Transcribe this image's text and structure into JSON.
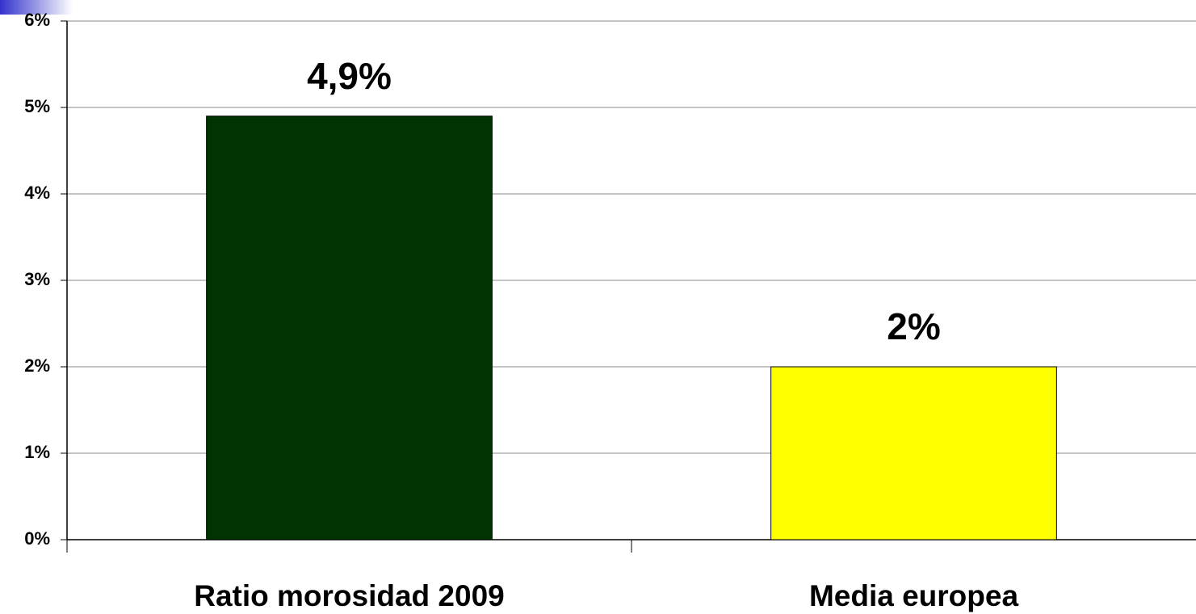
{
  "chart_data": {
    "type": "bar",
    "categories": [
      "Ratio morosidad 2009",
      "Media europea"
    ],
    "values": [
      4.9,
      2
    ],
    "value_labels": [
      "4,9%",
      "2%"
    ],
    "colors": [
      "#003300",
      "#ffff00"
    ],
    "ylim": [
      0,
      6
    ],
    "yticks": [
      {
        "value": 0,
        "label": "0%"
      },
      {
        "value": 1,
        "label": "1%"
      },
      {
        "value": 2,
        "label": "2%"
      },
      {
        "value": 3,
        "label": "3%"
      },
      {
        "value": 4,
        "label": "4%"
      },
      {
        "value": 5,
        "label": "5%"
      },
      {
        "value": 6,
        "label": "6%"
      }
    ],
    "grid": true
  }
}
